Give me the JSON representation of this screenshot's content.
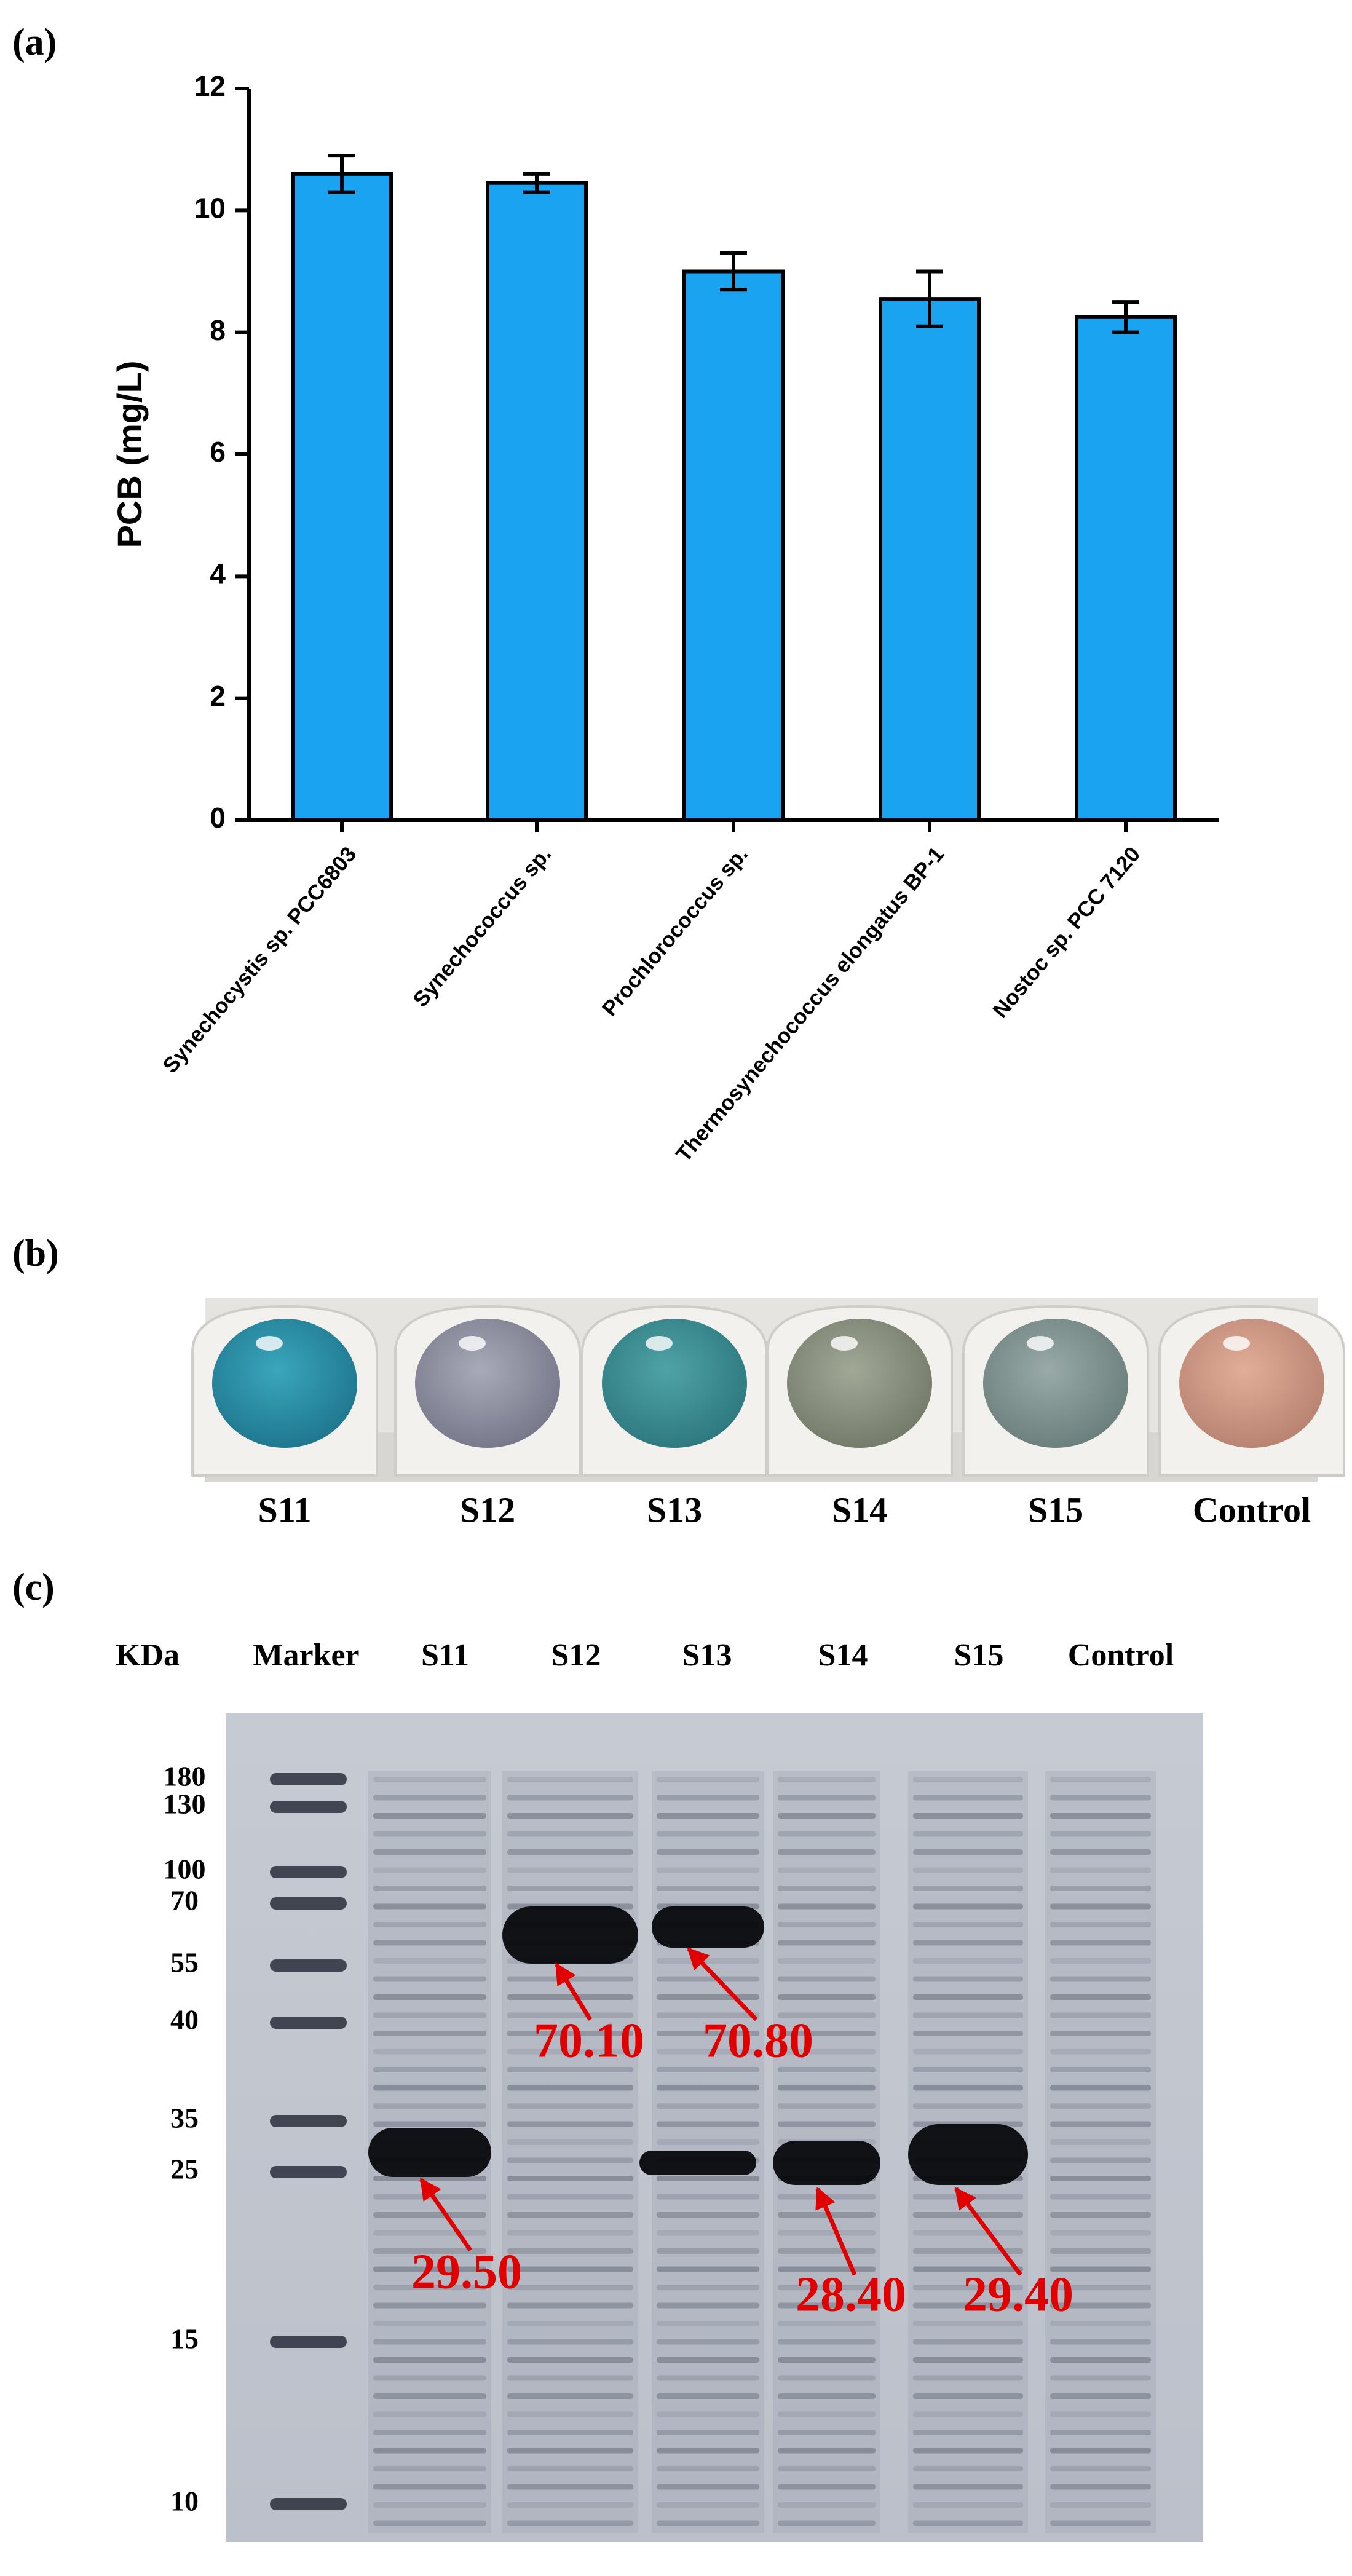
{
  "chart_data": {
    "type": "bar",
    "ylabel": "PCB (mg/L)",
    "categories": [
      "Synechocystis sp. PCC6803",
      "Synechococcus sp.",
      "Prochlorococcus sp.",
      "Thermosynechococcus elongatus BP-1",
      "Nostoc sp. PCC 7120"
    ],
    "values": [
      10.6,
      10.45,
      9.0,
      8.55,
      8.25
    ],
    "errors": [
      0.3,
      0.15,
      0.3,
      0.45,
      0.25
    ],
    "color": "#1aa3f0",
    "ylim": [
      0,
      12
    ],
    "yticks": [
      0,
      2,
      4,
      6,
      8,
      10,
      12
    ],
    "grid": false
  },
  "panels": [
    "(a)",
    "(b)",
    "(c)"
  ],
  "photo": {
    "labels": [
      "S11",
      "S12",
      "S13",
      "S14",
      "S15",
      "Control"
    ]
  },
  "gel": {
    "headers": [
      "KDa",
      "Marker",
      "S11",
      "S12",
      "S13",
      "S14",
      "S15",
      "Control"
    ],
    "marker_sizes": [
      "180",
      "130",
      "100",
      "70",
      "55",
      "40",
      "35",
      "25",
      "15",
      "10"
    ],
    "annotations": [
      "70.10",
      "70.80",
      "29.50",
      "28.40",
      "29.40"
    ]
  }
}
